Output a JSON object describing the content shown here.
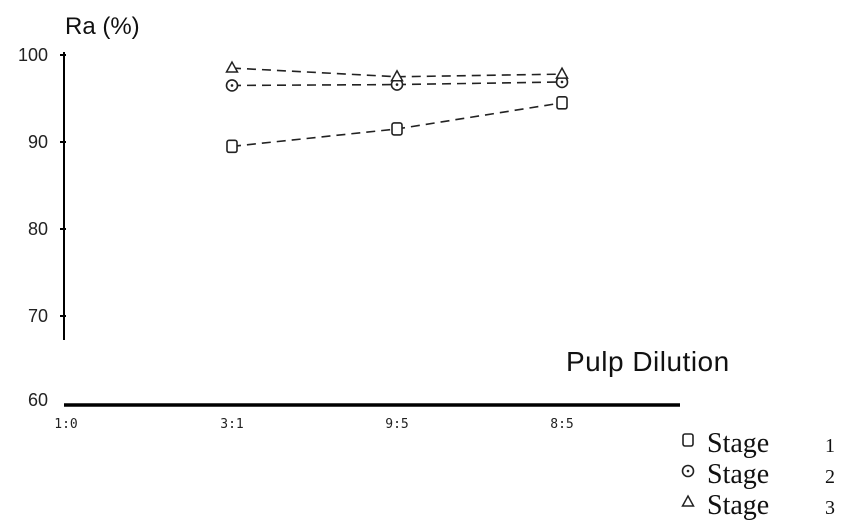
{
  "chart_data": {
    "type": "line",
    "ylabel": "Ra (%)",
    "xlabel": "Pulp  Dilution",
    "categories": [
      "1:0",
      "3:1",
      "9:5",
      "8:5"
    ],
    "yticks": [
      "60",
      "70",
      "80",
      "90",
      "100"
    ],
    "ylim": [
      60,
      100
    ],
    "series": [
      {
        "name": "Stage",
        "num": "1",
        "marker": "square",
        "values": [
          null,
          89.5,
          91.5,
          94.5
        ]
      },
      {
        "name": "Stage",
        "num": "2",
        "marker": "circle",
        "values": [
          null,
          96.5,
          96.6,
          96.9
        ]
      },
      {
        "name": "Stage",
        "num": "3",
        "marker": "triangle",
        "values": [
          null,
          98.5,
          97.5,
          97.8
        ]
      }
    ],
    "legend_position": "bottom-right",
    "grid": false
  }
}
